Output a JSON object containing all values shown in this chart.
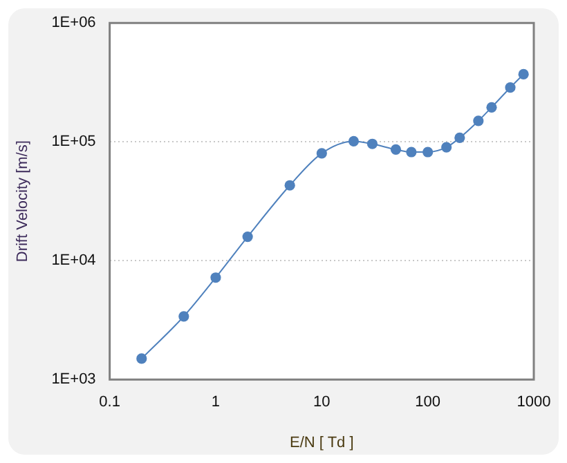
{
  "chart_data": {
    "type": "line",
    "xlabel": "E/N [ Td ]",
    "ylabel": "Drift Velocity [m/s]",
    "x": [
      0.2,
      0.5,
      1,
      2,
      5,
      10,
      20,
      30,
      50,
      70,
      100,
      150,
      200,
      300,
      400,
      600,
      800
    ],
    "series": [
      {
        "color": "#4f81bd",
        "values": [
          1500,
          3400,
          7200,
          15900,
          43000,
          80000,
          101000,
          96000,
          86000,
          82000,
          82000,
          90000,
          108000,
          150000,
          195000,
          286000,
          370000
        ]
      }
    ],
    "log": "xy",
    "xlim": [
      0.1,
      1000
    ],
    "xticks": [
      0.1,
      1,
      10,
      100,
      1000
    ],
    "ylim": [
      1000,
      1000000
    ],
    "yticks": [
      {
        "value": 1000,
        "label": "1E+03"
      },
      {
        "value": 10000,
        "label": "1E+04"
      },
      {
        "value": 100000,
        "label": "1E+05"
      },
      {
        "value": 1000000,
        "label": "1E+06"
      }
    ],
    "grid": "y",
    "marker": "circle",
    "line_style": "solid",
    "legend": false
  }
}
